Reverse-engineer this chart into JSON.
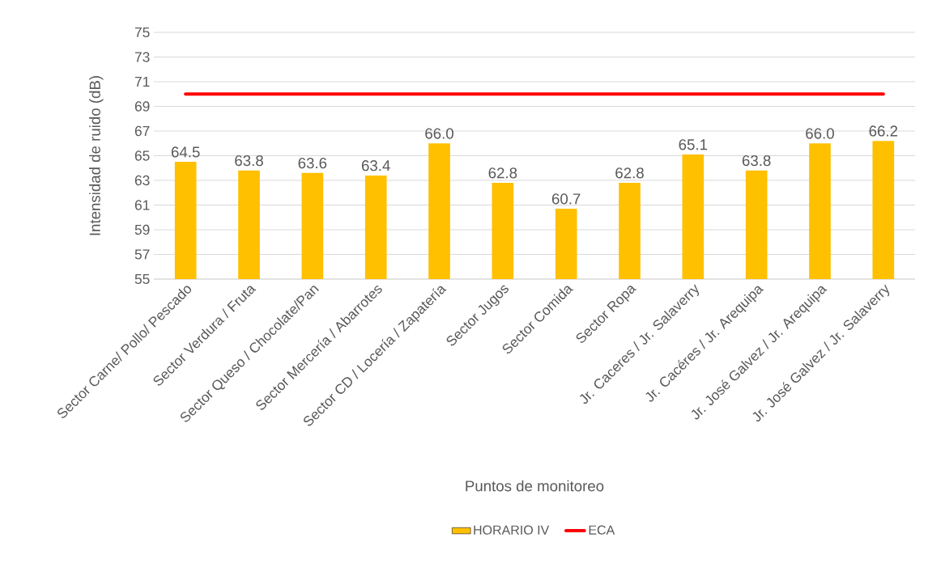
{
  "chart_data": {
    "type": "bar",
    "xlabel": "Puntos de monitoreo",
    "ylabel": "Intensidad de ruido (dB)",
    "categories": [
      "Sector Carne/ Pollo/ Pescado",
      "Sector Verdura / Fruta",
      "Sector Queso / Chocolate/Pan",
      "Sector Mercería / Abarrotes",
      "Sector CD / Locería / Zapatería",
      "Sector Jugos",
      "Sector Comida",
      "Sector Ropa",
      "Jr. Caceres / Jr. Salaverry",
      "Jr. Cacéres / Jr. Arequipa",
      "Jr. José Galvez / Jr. Arequipa",
      "Jr. José Galvez / Jr. Salaverry"
    ],
    "series": [
      {
        "name": "HORARIO IV",
        "color": "#ffc000",
        "values": [
          64.5,
          63.8,
          63.6,
          63.4,
          66.0,
          62.8,
          60.7,
          62.8,
          65.1,
          63.8,
          66.0,
          66.2
        ],
        "value_labels": [
          "64.5",
          "63.8",
          "63.6",
          "63.4",
          "66.0",
          "62.8",
          "60.7",
          "62.8",
          "65.1",
          "63.8",
          "66.0",
          "66.2"
        ]
      },
      {
        "name": "ECA",
        "type": "line",
        "color": "#ff0000",
        "values": [
          70,
          70,
          70,
          70,
          70,
          70,
          70,
          70,
          70,
          70,
          70,
          70
        ]
      }
    ],
    "ylim": [
      55,
      75
    ],
    "yticks": [
      55,
      57,
      59,
      61,
      63,
      65,
      67,
      69,
      71,
      73,
      75
    ],
    "grid": "y",
    "legend": "bottom"
  }
}
